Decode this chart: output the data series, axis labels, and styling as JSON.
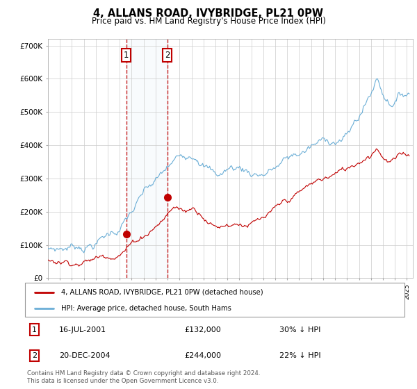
{
  "title": "4, ALLANS ROAD, IVYBRIDGE, PL21 0PW",
  "subtitle": "Price paid vs. HM Land Registry's House Price Index (HPI)",
  "hpi_color": "#6baed6",
  "price_color": "#c00000",
  "sale1_date": 2001.54,
  "sale1_price": 132000,
  "sale1_label": "1",
  "sale2_date": 2004.97,
  "sale2_price": 244000,
  "sale2_label": "2",
  "ylim": [
    0,
    720000
  ],
  "yticks": [
    0,
    100000,
    200000,
    300000,
    400000,
    500000,
    600000,
    700000
  ],
  "ytick_labels": [
    "£0",
    "£100K",
    "£200K",
    "£300K",
    "£400K",
    "£500K",
    "£600K",
    "£700K"
  ],
  "xlim_start": 1995.0,
  "xlim_end": 2025.5,
  "legend_line1": "4, ALLANS ROAD, IVYBRIDGE, PL21 0PW (detached house)",
  "legend_line2": "HPI: Average price, detached house, South Hams",
  "table_row1": [
    "1",
    "16-JUL-2001",
    "£132,000",
    "30% ↓ HPI"
  ],
  "table_row2": [
    "2",
    "20-DEC-2004",
    "£244,000",
    "22% ↓ HPI"
  ],
  "footnote": "Contains HM Land Registry data © Crown copyright and database right 2024.\nThis data is licensed under the Open Government Licence v3.0.",
  "background_color": "#ffffff",
  "grid_color": "#cccccc",
  "shade_color": "#dce9f5"
}
